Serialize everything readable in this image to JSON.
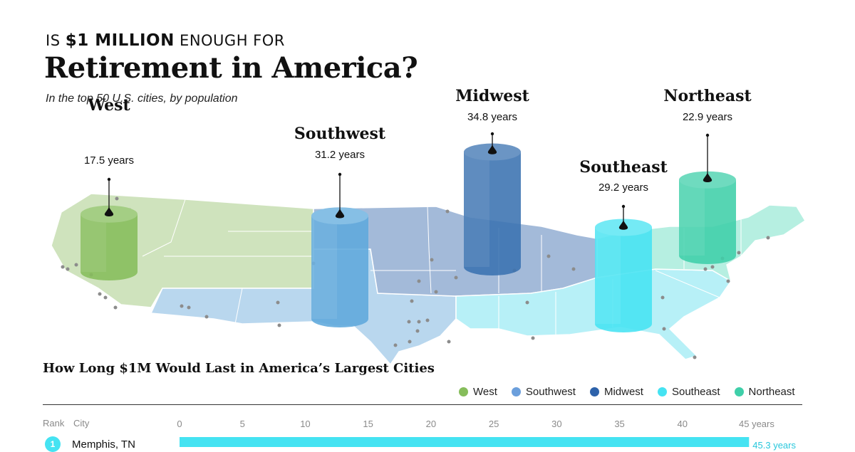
{
  "header": {
    "kicker_is": "IS",
    "kicker_amount": "$1 MILLION",
    "kicker_rest": "ENOUGH FOR",
    "title": "Retirement in America?",
    "subtitle": "In the top 50 U.S. cities, by population"
  },
  "colors": {
    "West": "#86bd5b",
    "Southwest": "#5ea9dc",
    "Midwest": "#3a72b0",
    "Southeast": "#45e3f2",
    "Northeast": "#3fcfa9"
  },
  "chart_data": [
    {
      "type": "bar",
      "categories": [
        "West",
        "Southwest",
        "Midwest",
        "Southeast",
        "Northeast"
      ],
      "values": [
        17.5,
        31.2,
        34.8,
        29.2,
        22.9
      ],
      "value_labels": [
        "17.5 years",
        "31.2 years",
        "34.8 years",
        "29.2 years",
        "22.9 years"
      ],
      "title": "",
      "xlabel": "",
      "ylabel": ""
    },
    {
      "type": "bar",
      "title": "How Long $1M Would Last in America’s Largest Cities",
      "columns": {
        "rank": "Rank",
        "city": "City"
      },
      "xlim": [
        0,
        45
      ],
      "xticks": [
        0,
        5,
        10,
        15,
        20,
        25,
        30,
        35,
        40,
        45
      ],
      "xtick_labels": [
        "0",
        "5",
        "10",
        "15",
        "20",
        "25",
        "30",
        "35",
        "40",
        "45 years"
      ],
      "rows": [
        {
          "rank": "1",
          "city": "Memphis, TN",
          "region": "Southeast",
          "value": 45.3,
          "label": "45.3 years"
        }
      ],
      "legend": [
        "West",
        "Southwest",
        "Midwest",
        "Southeast",
        "Northeast"
      ],
      "legend_position": "top-right"
    }
  ]
}
